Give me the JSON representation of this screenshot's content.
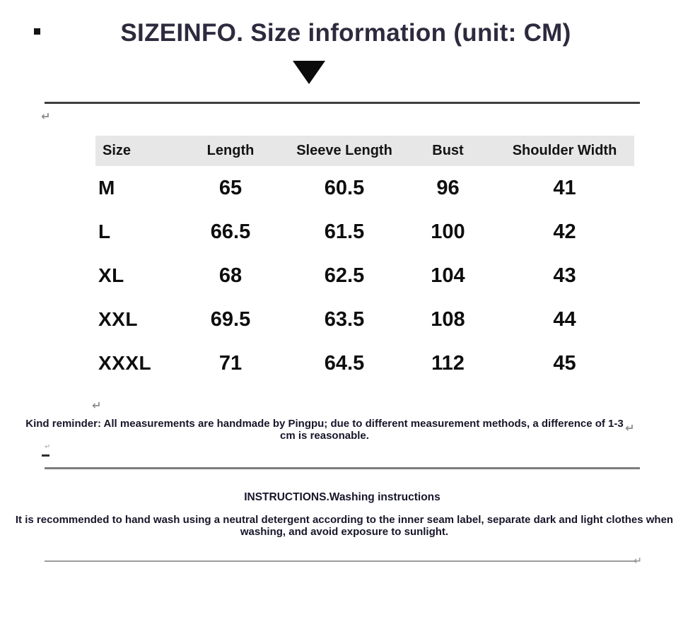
{
  "title": "SIZEINFO. Size information (unit: CM)",
  "icons": {
    "return_mark": "↵"
  },
  "colors": {
    "title_text": "#2e2a3e",
    "table_header_bg": "#e7e7e7",
    "table_text": "#0e0e0e",
    "divider_dark": "#3d3d3d",
    "divider_gray": "#7d7d7d",
    "divider_light": "#9c9c9c",
    "return_mark": "#909090"
  },
  "size_chart": {
    "type": "table",
    "columns": [
      "Size",
      "Length",
      "Sleeve Length",
      "Bust",
      "Shoulder Width"
    ],
    "rows": [
      {
        "size": "M",
        "length": "65",
        "sleeve_length": "60.5",
        "bust": "96",
        "shoulder_width": "41"
      },
      {
        "size": "L",
        "length": "66.5",
        "sleeve_length": "61.5",
        "bust": "100",
        "shoulder_width": "42"
      },
      {
        "size": "XL",
        "length": "68",
        "sleeve_length": "62.5",
        "bust": "104",
        "shoulder_width": "43"
      },
      {
        "size": "XXL",
        "length": "69.5",
        "sleeve_length": "63.5",
        "bust": "108",
        "shoulder_width": "44"
      },
      {
        "size": "XXXL",
        "length": "71",
        "sleeve_length": "64.5",
        "bust": "112",
        "shoulder_width": "45"
      }
    ]
  },
  "reminder": "Kind reminder: All measurements are handmade by Pingpu; due to different measurement methods, a difference of 1-3 cm is reasonable.",
  "instructions": {
    "heading": "INSTRUCTIONS.Washing instructions",
    "body": "It is recommended to hand wash using a neutral detergent according to the inner seam label, separate dark and light clothes when washing, and avoid exposure to sunlight."
  }
}
